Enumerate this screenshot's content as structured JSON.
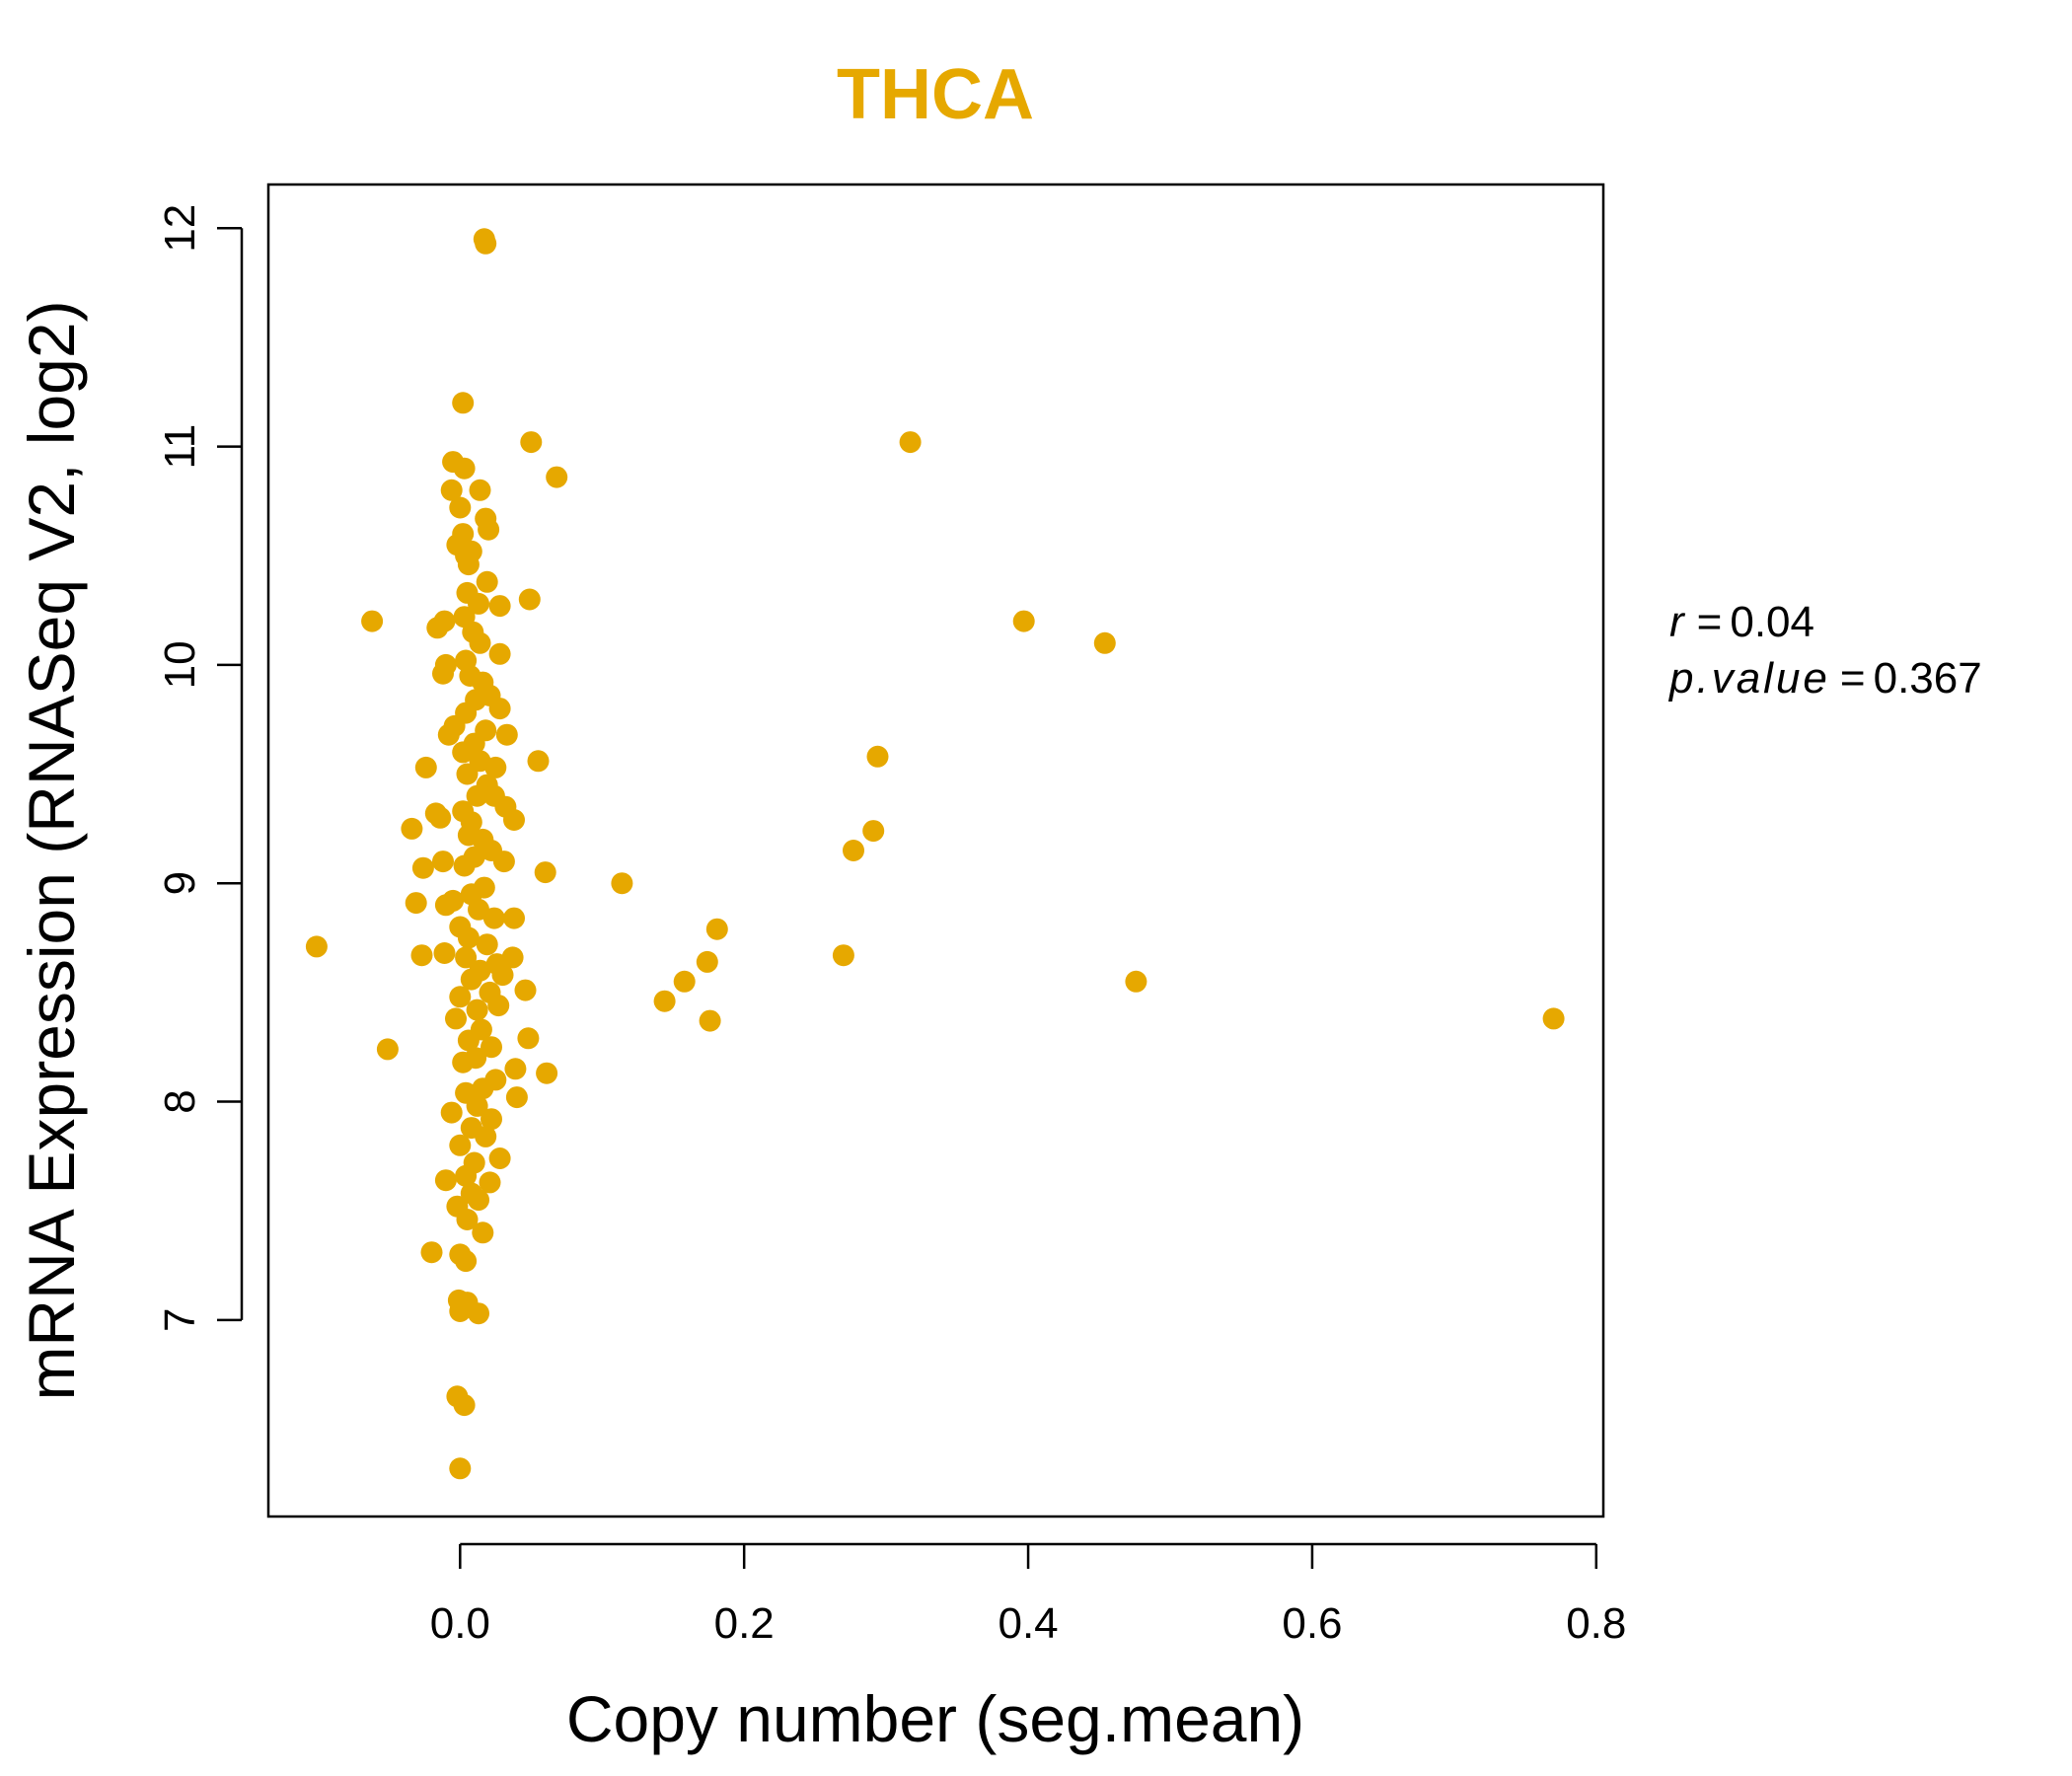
{
  "colors": {
    "point": "#E6A800",
    "title": "#E6A800",
    "axis": "#000000"
  },
  "chart_data": {
    "type": "scatter",
    "title": "THCA",
    "xlabel": "Copy number (seg.mean)",
    "ylabel": "mRNA Expression (RNASeq V2, log2)",
    "xlim": [
      -0.135,
      0.805
    ],
    "ylim": [
      6.1,
      12.2
    ],
    "x_ticks": [
      0.0,
      0.2,
      0.4,
      0.6,
      0.8
    ],
    "x_tick_labels": [
      "0.0",
      "0.2",
      "0.4",
      "0.6",
      "0.8"
    ],
    "y_ticks": [
      7,
      8,
      9,
      10,
      11,
      12
    ],
    "y_tick_labels": [
      "7",
      "8",
      "9",
      "10",
      "11",
      "12"
    ],
    "stats": {
      "r_label": "r",
      "r_value": "0.04",
      "p_label": "p.value",
      "p_value": "0.367"
    },
    "points": [
      [
        0.017,
        11.95
      ],
      [
        0.018,
        11.93
      ],
      [
        0.002,
        11.2
      ],
      [
        0.05,
        11.02
      ],
      [
        0.068,
        10.86
      ],
      [
        0.317,
        11.02
      ],
      [
        -0.005,
        10.93
      ],
      [
        0.003,
        10.9
      ],
      [
        0.014,
        10.8
      ],
      [
        -0.006,
        10.8
      ],
      [
        0.018,
        10.67
      ],
      [
        0.02,
        10.62
      ],
      [
        0.0,
        10.72
      ],
      [
        0.002,
        10.6
      ],
      [
        -0.002,
        10.55
      ],
      [
        0.004,
        10.5
      ],
      [
        0.006,
        10.46
      ],
      [
        0.008,
        10.52
      ],
      [
        0.019,
        10.38
      ],
      [
        0.005,
        10.33
      ],
      [
        0.013,
        10.28
      ],
      [
        0.028,
        10.27
      ],
      [
        0.049,
        10.3
      ],
      [
        -0.062,
        10.2
      ],
      [
        -0.011,
        10.2
      ],
      [
        -0.016,
        10.17
      ],
      [
        0.003,
        10.22
      ],
      [
        0.009,
        10.15
      ],
      [
        0.014,
        10.1
      ],
      [
        0.028,
        10.05
      ],
      [
        -0.01,
        10.0
      ],
      [
        -0.012,
        9.96
      ],
      [
        0.004,
        10.02
      ],
      [
        0.007,
        9.95
      ],
      [
        0.016,
        9.92
      ],
      [
        0.021,
        9.86
      ],
      [
        0.011,
        9.84
      ],
      [
        0.028,
        9.8
      ],
      [
        0.004,
        9.78
      ],
      [
        -0.004,
        9.72
      ],
      [
        -0.008,
        9.68
      ],
      [
        0.018,
        9.7
      ],
      [
        0.033,
        9.68
      ],
      [
        0.01,
        9.64
      ],
      [
        0.002,
        9.6
      ],
      [
        0.014,
        9.56
      ],
      [
        0.025,
        9.53
      ],
      [
        0.055,
        9.56
      ],
      [
        -0.024,
        9.53
      ],
      [
        0.005,
        9.5
      ],
      [
        0.019,
        9.45
      ],
      [
        0.012,
        9.4
      ],
      [
        0.024,
        9.4
      ],
      [
        0.032,
        9.35
      ],
      [
        -0.017,
        9.32
      ],
      [
        -0.014,
        9.3
      ],
      [
        0.002,
        9.33
      ],
      [
        0.008,
        9.28
      ],
      [
        0.038,
        9.29
      ],
      [
        -0.034,
        9.25
      ],
      [
        0.006,
        9.22
      ],
      [
        0.016,
        9.2
      ],
      [
        0.022,
        9.15
      ],
      [
        0.01,
        9.12
      ],
      [
        0.031,
        9.1
      ],
      [
        -0.012,
        9.1
      ],
      [
        0.003,
        9.08
      ],
      [
        -0.026,
        9.07
      ],
      [
        0.06,
        9.05
      ],
      [
        0.114,
        9.0
      ],
      [
        0.017,
        8.98
      ],
      [
        0.008,
        8.95
      ],
      [
        -0.005,
        8.92
      ],
      [
        -0.01,
        8.9
      ],
      [
        -0.031,
        8.91
      ],
      [
        0.013,
        8.88
      ],
      [
        0.024,
        8.84
      ],
      [
        0.038,
        8.84
      ],
      [
        0.181,
        8.79
      ],
      [
        0.0,
        8.8
      ],
      [
        0.006,
        8.75
      ],
      [
        0.019,
        8.72
      ],
      [
        -0.101,
        8.71
      ],
      [
        0.27,
        8.67
      ],
      [
        -0.011,
        8.68
      ],
      [
        -0.027,
        8.67
      ],
      [
        0.004,
        8.66
      ],
      [
        0.026,
        8.63
      ],
      [
        0.037,
        8.66
      ],
      [
        0.174,
        8.64
      ],
      [
        0.014,
        8.6
      ],
      [
        0.03,
        8.58
      ],
      [
        0.008,
        8.56
      ],
      [
        0.158,
        8.55
      ],
      [
        0.476,
        8.55
      ],
      [
        0.046,
        8.51
      ],
      [
        0.021,
        8.5
      ],
      [
        0.0,
        8.48
      ],
      [
        0.144,
        8.46
      ],
      [
        0.027,
        8.44
      ],
      [
        0.012,
        8.42
      ],
      [
        -0.003,
        8.38
      ],
      [
        0.176,
        8.37
      ],
      [
        0.77,
        8.38
      ],
      [
        0.015,
        8.33
      ],
      [
        0.048,
        8.29
      ],
      [
        0.006,
        8.28
      ],
      [
        0.022,
        8.25
      ],
      [
        -0.051,
        8.24
      ],
      [
        0.011,
        8.2
      ],
      [
        0.002,
        8.18
      ],
      [
        0.039,
        8.15
      ],
      [
        0.061,
        8.13
      ],
      [
        0.025,
        8.1
      ],
      [
        0.016,
        8.06
      ],
      [
        0.004,
        8.04
      ],
      [
        0.04,
        8.02
      ],
      [
        0.012,
        7.98
      ],
      [
        -0.006,
        7.95
      ],
      [
        0.022,
        7.92
      ],
      [
        0.008,
        7.88
      ],
      [
        0.018,
        7.84
      ],
      [
        0.0,
        7.8
      ],
      [
        0.028,
        7.74
      ],
      [
        0.01,
        7.72
      ],
      [
        0.004,
        7.66
      ],
      [
        -0.01,
        7.64
      ],
      [
        0.021,
        7.63
      ],
      [
        0.008,
        7.58
      ],
      [
        0.013,
        7.55
      ],
      [
        -0.002,
        7.52
      ],
      [
        0.005,
        7.46
      ],
      [
        0.016,
        7.4
      ],
      [
        -0.02,
        7.31
      ],
      [
        0.0,
        7.3
      ],
      [
        0.004,
        7.27
      ],
      [
        -0.001,
        7.09
      ],
      [
        0.005,
        7.08
      ],
      [
        0.0,
        7.04
      ],
      [
        0.013,
        7.03
      ],
      [
        -0.002,
        6.65
      ],
      [
        0.003,
        6.61
      ],
      [
        0.0,
        6.32
      ],
      [
        0.291,
        9.24
      ],
      [
        0.277,
        9.15
      ],
      [
        0.294,
        9.58
      ],
      [
        0.397,
        10.2
      ],
      [
        0.454,
        10.1
      ]
    ]
  }
}
